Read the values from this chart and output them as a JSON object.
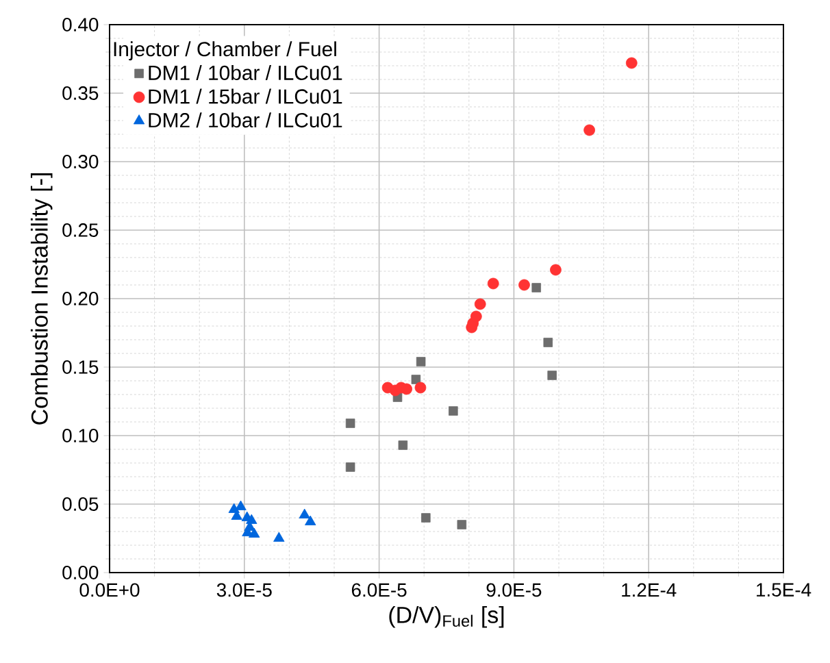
{
  "chart_data": {
    "type": "scatter",
    "xlabel": "(D/V)$_{Fuel}$ [s]",
    "ylabel": "Combustion Instability [-]",
    "legend_title": "Injector / Chamber / Fuel",
    "xlim": [
      0,
      0.00015
    ],
    "ylim": [
      0,
      0.4
    ],
    "xticks": [
      {
        "value": 0,
        "label": "0.0E+0"
      },
      {
        "value": 3e-05,
        "label": "3.0E-5"
      },
      {
        "value": 6e-05,
        "label": "6.0E-5"
      },
      {
        "value": 9e-05,
        "label": "9.0E-5"
      },
      {
        "value": 0.00012,
        "label": "1.2E-4"
      },
      {
        "value": 0.00015,
        "label": "1.5E-4"
      }
    ],
    "yticks": [
      {
        "value": 0,
        "label": "0.00"
      },
      {
        "value": 0.05,
        "label": "0.05"
      },
      {
        "value": 0.1,
        "label": "0.10"
      },
      {
        "value": 0.15,
        "label": "0.15"
      },
      {
        "value": 0.2,
        "label": "0.20"
      },
      {
        "value": 0.25,
        "label": "0.25"
      },
      {
        "value": 0.3,
        "label": "0.30"
      },
      {
        "value": 0.35,
        "label": "0.35"
      },
      {
        "value": 0.4,
        "label": "0.40"
      }
    ],
    "grid": true,
    "legend": "top left",
    "series": [
      {
        "name": "DM1 / 10bar / ILCu01",
        "color": "#6d6d6d",
        "marker": "square",
        "x": [
          5.36e-05,
          5.36e-05,
          6.41e-05,
          6.53e-05,
          6.82e-05,
          6.93e-05,
          7.04e-05,
          7.65e-05,
          7.84e-05,
          9.5e-05,
          9.76e-05,
          9.85e-05
        ],
        "values": [
          0.109,
          0.077,
          0.128,
          0.093,
          0.141,
          0.154,
          0.04,
          0.118,
          0.035,
          0.208,
          0.168,
          0.144
        ]
      },
      {
        "name": "DM1 / 15bar / ILCu01",
        "color": "#ff3333",
        "marker": "circle",
        "x": [
          6.19e-05,
          6.36e-05,
          6.49e-05,
          6.61e-05,
          6.92e-05,
          8.06e-05,
          8.09e-05,
          8.16e-05,
          8.25e-05,
          8.54e-05,
          9.23e-05,
          9.93e-05,
          0.0001068,
          0.0001162
        ],
        "values": [
          0.135,
          0.133,
          0.135,
          0.134,
          0.135,
          0.179,
          0.182,
          0.187,
          0.196,
          0.211,
          0.21,
          0.221,
          0.323,
          0.372
        ]
      },
      {
        "name": "DM2 / 10bar / ILCu01",
        "color": "#0066dd",
        "marker": "triangle",
        "x": [
          2.77e-05,
          2.92e-05,
          2.83e-05,
          3.06e-05,
          3.16e-05,
          3.12e-05,
          3.22e-05,
          3.07e-05,
          3.77e-05,
          4.34e-05,
          4.47e-05
        ],
        "values": [
          0.046,
          0.048,
          0.041,
          0.04,
          0.038,
          0.033,
          0.028,
          0.029,
          0.025,
          0.042,
          0.037
        ]
      }
    ]
  }
}
